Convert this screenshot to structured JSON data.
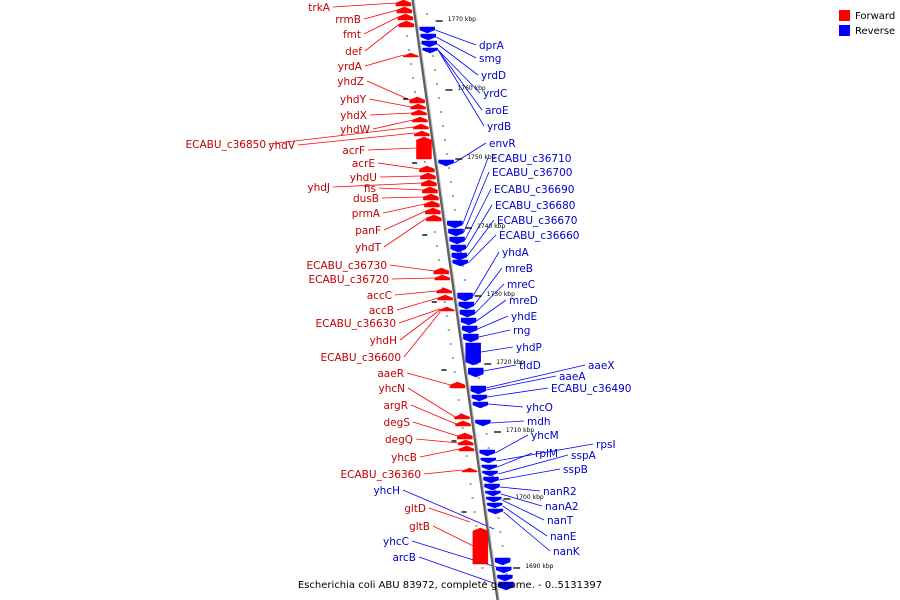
{
  "caption": "Escherichia coli ABU 83972, complete genome. - 0..5131397",
  "legend": [
    {
      "label": "Forward",
      "color": "#ff0000"
    },
    {
      "label": "Reverse",
      "color": "#0000ff"
    }
  ],
  "colors": {
    "forward": "#ff0000",
    "reverse": "#0000ff",
    "forward_label": "#c00000",
    "reverse_label": "#0000c8",
    "backbone": "#808080"
  },
  "ticks": [
    "1770 kbp",
    "1760 kbp",
    "1750 kbp",
    "1740 kbp",
    "1730 kbp",
    "1720 kbp",
    "1710 kbp",
    "1700 kbp",
    "1690 kbp"
  ],
  "forward_genes": [
    "trkA",
    "rrmB",
    "fmt",
    "def",
    "yrdA",
    "yhdZ",
    "yhdY",
    "yhdX",
    "yhdW",
    "ECABU_c36850",
    "yhdV",
    "acrF",
    "acrE",
    "yhdU",
    "yhdJ",
    "fis",
    "dusB",
    "prmA",
    "panF",
    "yhdT",
    "ECABU_c36730",
    "ECABU_c36720",
    "accC",
    "accB",
    "ECABU_c36630",
    "yhdH",
    "ECABU_c36600",
    "aaeR",
    "yhcN",
    "argR",
    "degS",
    "degQ",
    "yhcB",
    "ECABU_c36360",
    "gltD",
    "gltB"
  ],
  "reverse_genes": [
    "dprA",
    "smg",
    "yrdD",
    "yrdC",
    "aroE",
    "yrdB",
    "envR",
    "ECABU_c36710",
    "ECABU_c36700",
    "ECABU_c36690",
    "ECABU_c36680",
    "ECABU_c36670",
    "ECABU_c36660",
    "yhdA",
    "mreB",
    "mreC",
    "mreD",
    "yhdE",
    "rng",
    "yhdP",
    "tldD",
    "aaeX",
    "aaeA",
    "ECABU_c36490",
    "yhcO",
    "mdh",
    "yhcM",
    "rpsI",
    "rplM",
    "sspA",
    "sspB",
    "nanR2",
    "nanA2",
    "nanT",
    "nanE",
    "nanK",
    "yhcH",
    "yhcC",
    "arcB"
  ]
}
